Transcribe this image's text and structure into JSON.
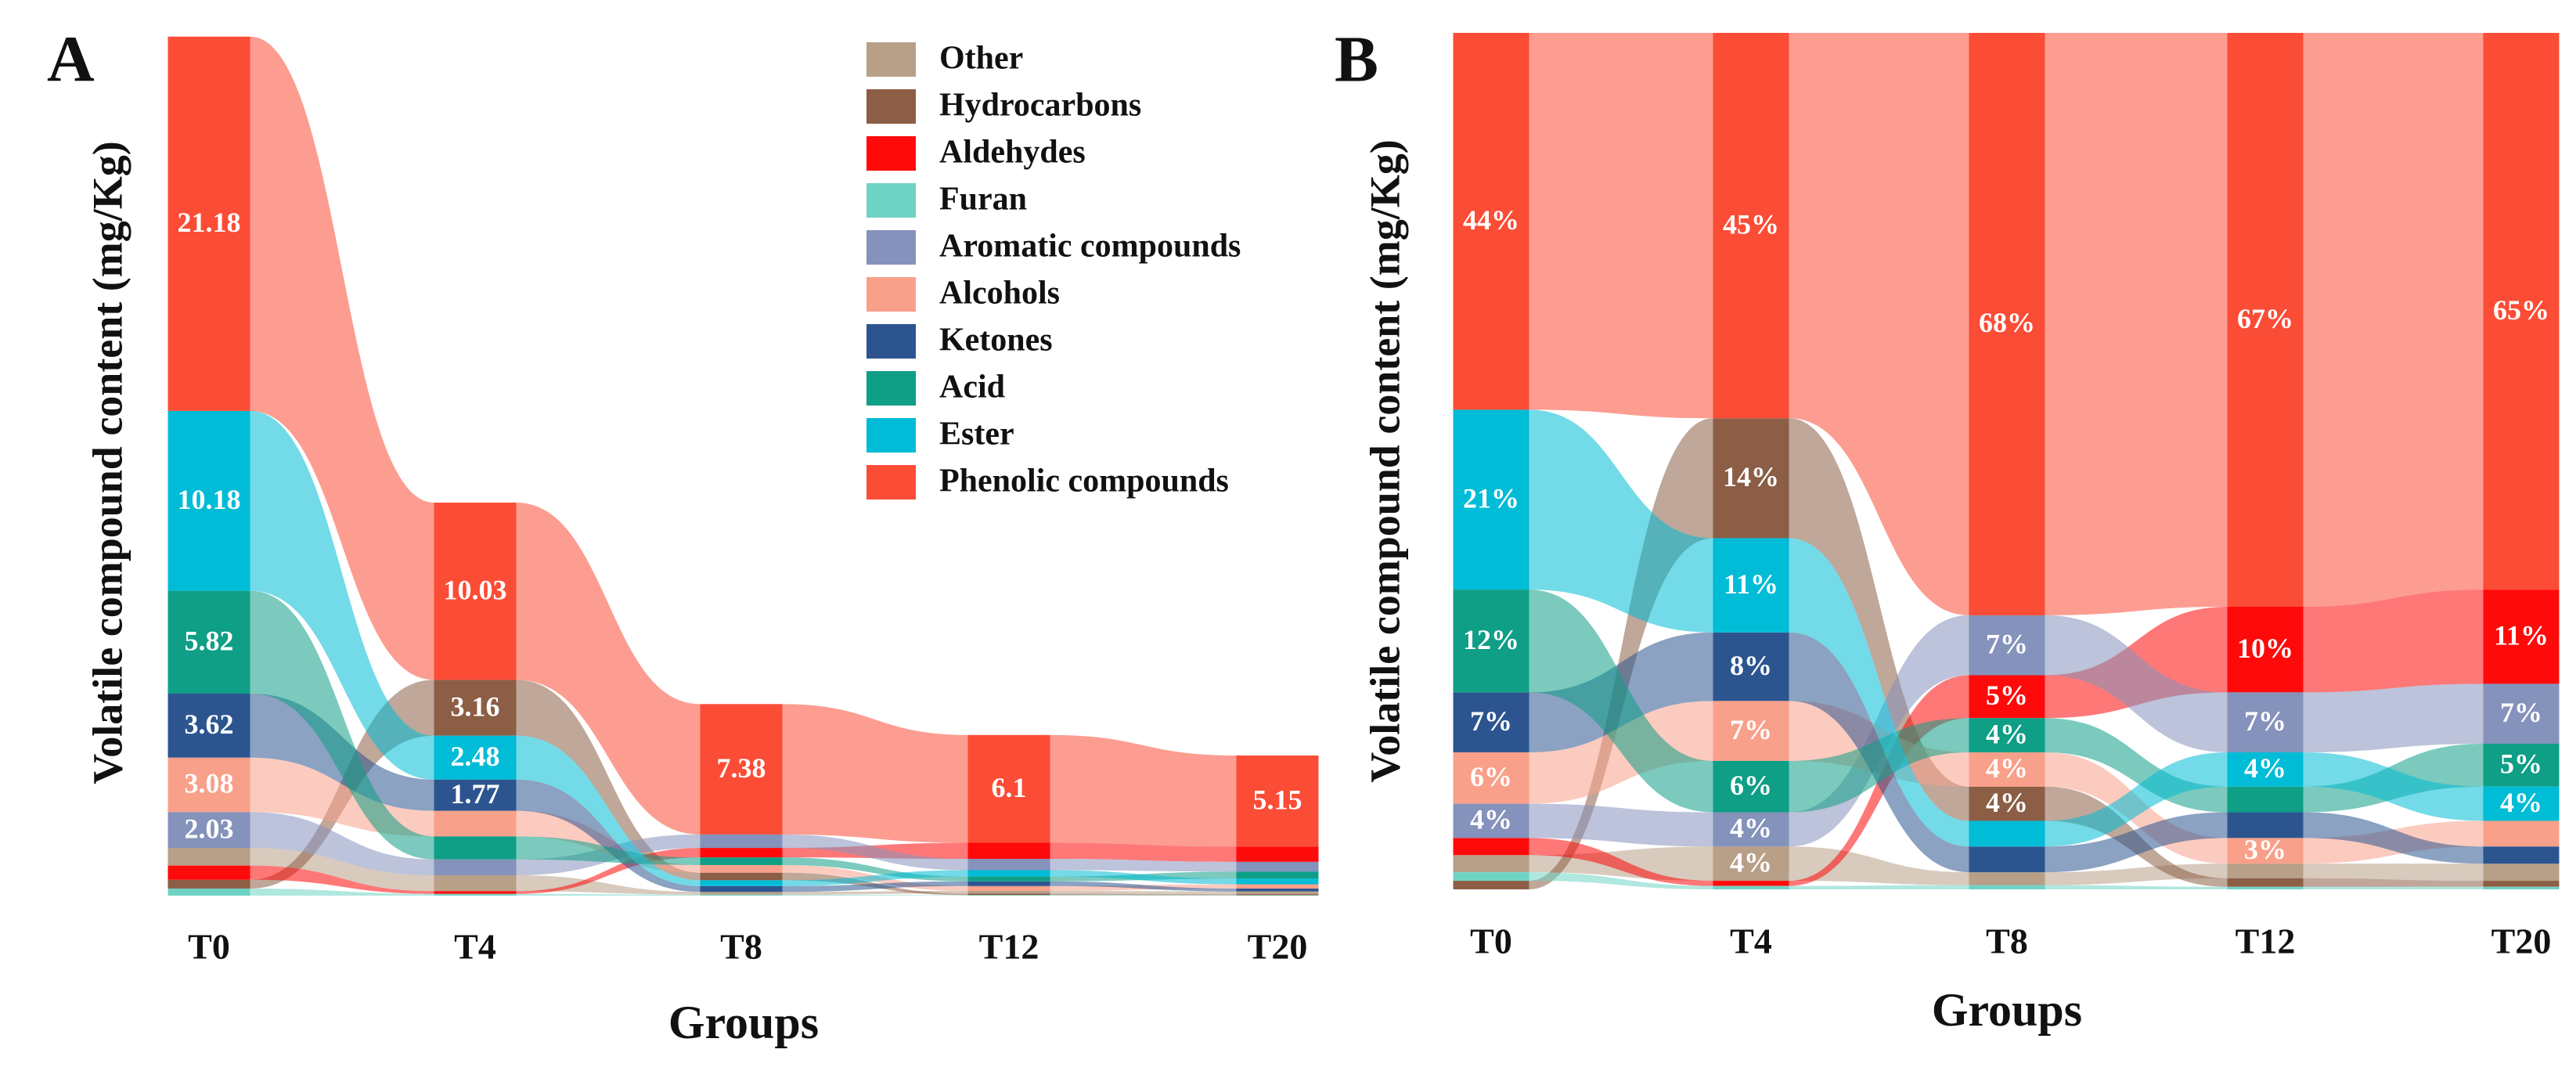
{
  "chart_data": [
    {
      "type": "alluvial",
      "title": "A",
      "y_label": "Volatile compound content (mg/Kg)",
      "x_label": "Groups",
      "categories": [
        "T0",
        "T4",
        "T8",
        "T12",
        "T20"
      ],
      "ylim": [
        0,
        49
      ],
      "legend": "upper right",
      "series": [
        {
          "name": "Other",
          "color": "#b89f87",
          "values": [
            1.0,
            0.9,
            0.16,
            0.15,
            0.16
          ]
        },
        {
          "name": "Hydrocarbons",
          "color": "#8b5e45",
          "values": [
            0.5,
            3.16,
            0.43,
            0.09,
            0.06
          ]
        },
        {
          "name": "Aldehydes",
          "color": "#ff0a0a",
          "values": [
            0.8,
            0.15,
            0.54,
            0.91,
            0.87
          ]
        },
        {
          "name": "Furan",
          "color": "#6fd3c4",
          "values": [
            0.4,
            0.1,
            0.05,
            0.03,
            0.02
          ]
        },
        {
          "name": "Aromatic compounds",
          "color": "#8592bb",
          "values": [
            2.03,
            0.9,
            0.76,
            0.64,
            0.55
          ]
        },
        {
          "name": "Alcohols",
          "color": "#f9a08a",
          "values": [
            3.08,
            1.45,
            0.43,
            0.27,
            0.24
          ]
        },
        {
          "name": "Ketones",
          "color": "#2c5590",
          "values": [
            3.62,
            1.77,
            0.33,
            0.27,
            0.16
          ]
        },
        {
          "name": "Acid",
          "color": "#0f9e86",
          "values": [
            5.82,
            1.3,
            0.43,
            0.27,
            0.4
          ]
        },
        {
          "name": "Ester",
          "color": "#00bcd6",
          "values": [
            10.18,
            2.48,
            0.33,
            0.36,
            0.32
          ]
        },
        {
          "name": "Phenolic compounds",
          "color": "#fb4c36",
          "values": [
            21.18,
            10.03,
            7.38,
            6.1,
            5.15
          ]
        }
      ]
    },
    {
      "type": "alluvial",
      "title": "B",
      "y_label": "Volatile compound content (mg/Kg)",
      "x_label": "Groups",
      "categories": [
        "T0",
        "T4",
        "T8",
        "T12",
        "T20"
      ],
      "ylim": [
        0,
        100
      ],
      "series": [
        {
          "name": "Other",
          "color": "#b89f87",
          "values": [
            2,
            4,
            1.5,
            1.7,
            2
          ],
          "value_labels": [
            null,
            "4%",
            null,
            null,
            null
          ]
        },
        {
          "name": "Hydrocarbons",
          "color": "#8b5e45",
          "values": [
            1,
            14,
            4,
            1,
            0.7
          ],
          "value_labels": [
            null,
            "14%",
            "4%",
            null,
            null
          ]
        },
        {
          "name": "Aldehydes",
          "color": "#ff0a0a",
          "values": [
            2,
            0.6,
            5,
            10,
            11
          ],
          "value_labels": [
            null,
            null,
            "5%",
            "10%",
            "11%"
          ]
        },
        {
          "name": "Furan",
          "color": "#6fd3c4",
          "values": [
            1,
            0.4,
            0.5,
            0.3,
            0.3
          ],
          "value_labels": [
            null,
            null,
            null,
            null,
            null
          ]
        },
        {
          "name": "Aromatic compounds",
          "color": "#8592bb",
          "values": [
            4,
            4,
            7,
            7,
            7
          ],
          "value_labels": [
            "4%",
            "4%",
            "7%",
            "7%",
            "7%"
          ]
        },
        {
          "name": "Alcohols",
          "color": "#f9a08a",
          "values": [
            6,
            7,
            4,
            3,
            3
          ],
          "value_labels": [
            "6%",
            "7%",
            "4%",
            "3%",
            null
          ]
        },
        {
          "name": "Ketones",
          "color": "#2c5590",
          "values": [
            7,
            8,
            3,
            3,
            2
          ],
          "value_labels": [
            "7%",
            "8%",
            null,
            null,
            null
          ]
        },
        {
          "name": "Acid",
          "color": "#0f9e86",
          "values": [
            12,
            6,
            4,
            3,
            5
          ],
          "value_labels": [
            "12%",
            "6%",
            "4%",
            null,
            "5%"
          ]
        },
        {
          "name": "Ester",
          "color": "#00bcd6",
          "values": [
            21,
            11,
            3,
            4,
            4
          ],
          "value_labels": [
            "21%",
            "11%",
            null,
            "4%",
            "4%"
          ]
        },
        {
          "name": "Phenolic compounds",
          "color": "#fb4c36",
          "values": [
            44,
            45,
            68,
            67,
            65
          ],
          "value_labels": [
            "44%",
            "45%",
            "68%",
            "67%",
            "65%"
          ]
        }
      ]
    }
  ]
}
